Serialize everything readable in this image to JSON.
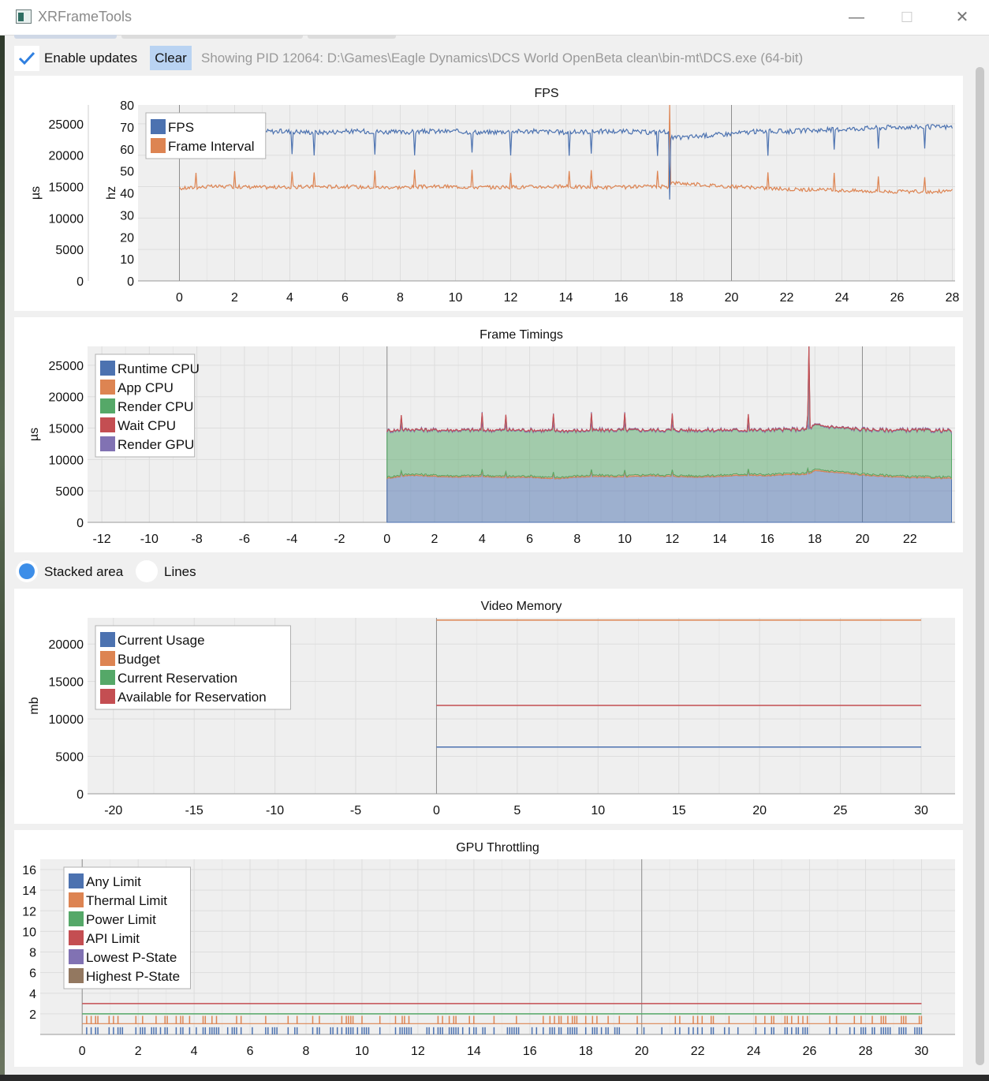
{
  "window": {
    "title": "XRFrameTools",
    "minimize": "—",
    "maximize": "☐",
    "close": "✕"
  },
  "toolbar": {
    "enable_updates_label": "Enable updates",
    "enable_updates_checked": true,
    "clear_label": "Clear",
    "status": "Showing PID 12064: D:\\Games\\Eagle Dynamics\\DCS World OpenBeta clean\\bin-mt\\DCS.exe (64-bit)"
  },
  "mode": {
    "stacked_label": "Stacked area",
    "lines_label": "Lines",
    "selected": "Stacked area"
  },
  "chart_data": [
    {
      "type": "line",
      "title": "FPS",
      "xlabel": "",
      "y_left_label": "µs",
      "y_right_label": "hz",
      "xlim": [
        -1.5,
        28.1
      ],
      "x_ticks": [
        "0",
        "2",
        "4",
        "6",
        "8",
        "10",
        "12",
        "14",
        "16",
        "18",
        "20",
        "22",
        "24",
        "26",
        "28"
      ],
      "y_left_ticks": [
        "25000",
        "20000",
        "15000",
        "10000",
        "5000",
        "0"
      ],
      "y_right_ticks": [
        "80",
        "70",
        "60",
        "50",
        "40",
        "30",
        "20",
        "10",
        "0"
      ],
      "ylim_left": [
        0,
        28000
      ],
      "ylim_right": [
        0,
        80
      ],
      "legend": "top-left",
      "grid": true,
      "series": [
        {
          "name": "FPS",
          "color": "#4c72b0",
          "axis": "right",
          "x": [
            0,
            1,
            2,
            3,
            4,
            5,
            6,
            7,
            8,
            9,
            10,
            11,
            12,
            13,
            14,
            15,
            16,
            17,
            17.7,
            17.8,
            18,
            19,
            20,
            21,
            22,
            23,
            24,
            25,
            26,
            27,
            28
          ],
          "values": [
            68,
            68,
            67.5,
            68,
            68,
            67.5,
            68,
            68,
            67.5,
            68,
            68,
            67.5,
            68,
            68,
            67.5,
            68,
            68,
            67.5,
            68,
            65,
            65,
            66,
            67,
            68,
            68,
            68.5,
            69,
            69.5,
            70,
            70,
            70
          ]
        },
        {
          "name": "Frame Interval",
          "color": "#dd8452",
          "axis": "left",
          "x": [
            0,
            1,
            2,
            3,
            4,
            5,
            6,
            7,
            8,
            9,
            10,
            11,
            12,
            13,
            14,
            15,
            16,
            17,
            17.7,
            17.8,
            18,
            19,
            20,
            21,
            22,
            23,
            24,
            25,
            26,
            27,
            28
          ],
          "values": [
            14700,
            15000,
            15000,
            14900,
            14900,
            15000,
            15000,
            14900,
            14900,
            15000,
            15000,
            14900,
            14900,
            15000,
            15000,
            14900,
            14900,
            15000,
            15000,
            15600,
            15600,
            15300,
            15000,
            14800,
            14600,
            14500,
            14400,
            14300,
            14200,
            14200,
            14300
          ]
        }
      ]
    },
    {
      "type": "area",
      "title": "Frame Timings",
      "xlabel": "",
      "ylabel": "µs",
      "xlim": [
        -12.6,
        23.9
      ],
      "ylim": [
        0,
        28000
      ],
      "stacked": true,
      "x_ticks": [
        "-12",
        "-10",
        "-8",
        "-6",
        "-4",
        "-2",
        "0",
        "2",
        "4",
        "6",
        "8",
        "10",
        "12",
        "14",
        "16",
        "18",
        "20",
        "22"
      ],
      "y_ticks": [
        "25000",
        "20000",
        "15000",
        "10000",
        "5000",
        "0"
      ],
      "legend": "top-left",
      "grid": true,
      "x": [
        0,
        1,
        2,
        3,
        4,
        5,
        6,
        7,
        8,
        9,
        10,
        11,
        12,
        13,
        14,
        15,
        16,
        17,
        17.7,
        18,
        19,
        20,
        21,
        22,
        23.8
      ],
      "series": [
        {
          "name": "Runtime CPU",
          "color": "#4c72b0",
          "values": [
            7000,
            7500,
            7300,
            7200,
            7300,
            7100,
            7200,
            6900,
            7200,
            7300,
            7200,
            7400,
            7300,
            7200,
            7300,
            7500,
            7400,
            7600,
            7600,
            8200,
            7900,
            7500,
            7300,
            7100,
            7000
          ]
        },
        {
          "name": "App CPU",
          "color": "#dd8452",
          "values": [
            200,
            200,
            200,
            200,
            200,
            200,
            200,
            200,
            200,
            200,
            200,
            200,
            200,
            200,
            200,
            200,
            200,
            200,
            200,
            200,
            200,
            200,
            200,
            200,
            200
          ]
        },
        {
          "name": "Render CPU",
          "color": "#55a868",
          "values": [
            7300,
            7000,
            7100,
            7200,
            7100,
            7300,
            7200,
            7400,
            7100,
            7100,
            7200,
            7000,
            7100,
            7200,
            7100,
            6900,
            7000,
            6900,
            6900,
            7000,
            6900,
            7000,
            7100,
            7300,
            7300
          ]
        },
        {
          "name": "Wait CPU",
          "color": "#c44e52",
          "values": [
            0,
            0,
            0,
            0,
            0,
            0,
            0,
            0,
            0,
            0,
            0,
            0,
            0,
            0,
            0,
            0,
            0,
            0,
            0,
            0,
            0,
            0,
            0,
            0,
            0
          ]
        },
        {
          "name": "Render GPU",
          "color": "#8172b3",
          "values": [
            100,
            100,
            100,
            100,
            100,
            100,
            100,
            100,
            100,
            100,
            100,
            100,
            100,
            100,
            100,
            100,
            100,
            100,
            100,
            100,
            100,
            100,
            100,
            100,
            100
          ]
        }
      ]
    },
    {
      "type": "line",
      "title": "Video Memory",
      "xlabel": "",
      "ylabel": "mb",
      "xlim": [
        -21.6,
        32.1
      ],
      "ylim": [
        0,
        23500
      ],
      "x_ticks": [
        "-20",
        "-15",
        "-10",
        "-5",
        "0",
        "5",
        "10",
        "15",
        "20",
        "25",
        "30"
      ],
      "y_ticks": [
        "20000",
        "15000",
        "10000",
        "5000",
        "0"
      ],
      "legend": "top-left",
      "grid": true,
      "x": [
        0,
        30
      ],
      "series": [
        {
          "name": "Current Usage",
          "color": "#4c72b0",
          "values": [
            6250,
            6250
          ]
        },
        {
          "name": "Budget",
          "color": "#dd8452",
          "values": [
            23200,
            23200
          ]
        },
        {
          "name": "Current Reservation",
          "color": "#55a868",
          "values": [
            0,
            0
          ]
        },
        {
          "name": "Available for Reservation",
          "color": "#c44e52",
          "values": [
            11800,
            11800
          ]
        }
      ]
    },
    {
      "type": "line",
      "title": "GPU Throttling",
      "xlabel": "",
      "ylabel": "",
      "xlim": [
        -1.5,
        31.2
      ],
      "ylim": [
        0,
        17
      ],
      "x_ticks": [
        "0",
        "2",
        "4",
        "6",
        "8",
        "10",
        "12",
        "14",
        "16",
        "18",
        "20",
        "22",
        "24",
        "26",
        "28",
        "30"
      ],
      "y_ticks": [
        "16",
        "14",
        "12",
        "10",
        "8",
        "6",
        "4",
        "2"
      ],
      "legend": "top-left",
      "grid": true,
      "series": [
        {
          "name": "Any Limit",
          "color": "#4c72b0",
          "style": "events",
          "level": [
            0,
            0.7
          ]
        },
        {
          "name": "Thermal Limit",
          "color": "#dd8452",
          "style": "events",
          "level": [
            1,
            1.8
          ]
        },
        {
          "name": "Power Limit",
          "color": "#55a868",
          "style": "constant",
          "value": 2
        },
        {
          "name": "API Limit",
          "color": "#c44e52",
          "style": "constant",
          "value": 3
        },
        {
          "name": "Lowest P-State",
          "color": "#8172b3",
          "style": "constant",
          "value": 0
        },
        {
          "name": "Highest P-State",
          "color": "#937860",
          "style": "constant",
          "value": 0
        }
      ]
    }
  ]
}
